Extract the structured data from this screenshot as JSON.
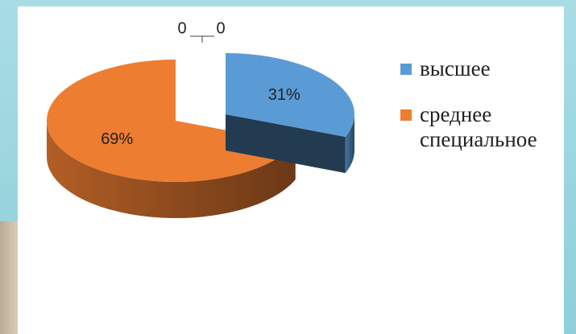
{
  "chart_data": {
    "type": "pie3d",
    "categories": [
      "высшее",
      "среднее специальное",
      null,
      null
    ],
    "values": [
      31,
      69,
      0,
      0
    ],
    "value_labels": [
      "31%",
      "69%",
      "0",
      "0"
    ],
    "colors": [
      "#5b9bd5",
      "#ed7d31"
    ],
    "legend": "right"
  }
}
